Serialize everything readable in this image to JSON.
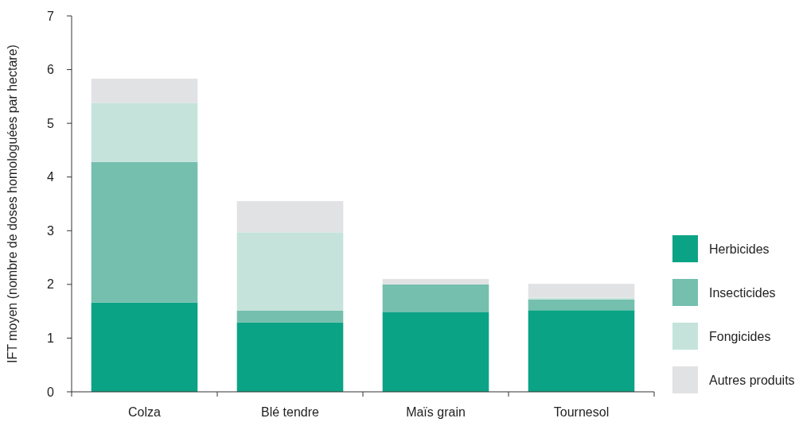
{
  "chart_data": {
    "type": "bar",
    "stacked": true,
    "ylabel": "IFT moyen (nombre de doses homologuées par hectare)",
    "categories": [
      "Colza",
      "Blé tendre",
      "Maïs grain",
      "Tournesol"
    ],
    "series": [
      {
        "name": "Herbicides",
        "color": "#0ba385",
        "values": [
          1.66,
          1.29,
          1.48,
          1.52
        ]
      },
      {
        "name": "Insecticides",
        "color": "#74bfae",
        "values": [
          2.62,
          0.22,
          0.52,
          0.2
        ]
      },
      {
        "name": "Fongicides",
        "color": "#c5e3db",
        "values": [
          1.1,
          1.46,
          0,
          0.03
        ]
      },
      {
        "name": "Autres produits",
        "color": "#e1e2e4",
        "values": [
          0.45,
          0.58,
          0.1,
          0.26
        ]
      }
    ],
    "ylim": [
      0,
      7
    ],
    "yticks": [
      0,
      1,
      2,
      3,
      4,
      5,
      6,
      7
    ],
    "grid": false,
    "legend": "right"
  }
}
